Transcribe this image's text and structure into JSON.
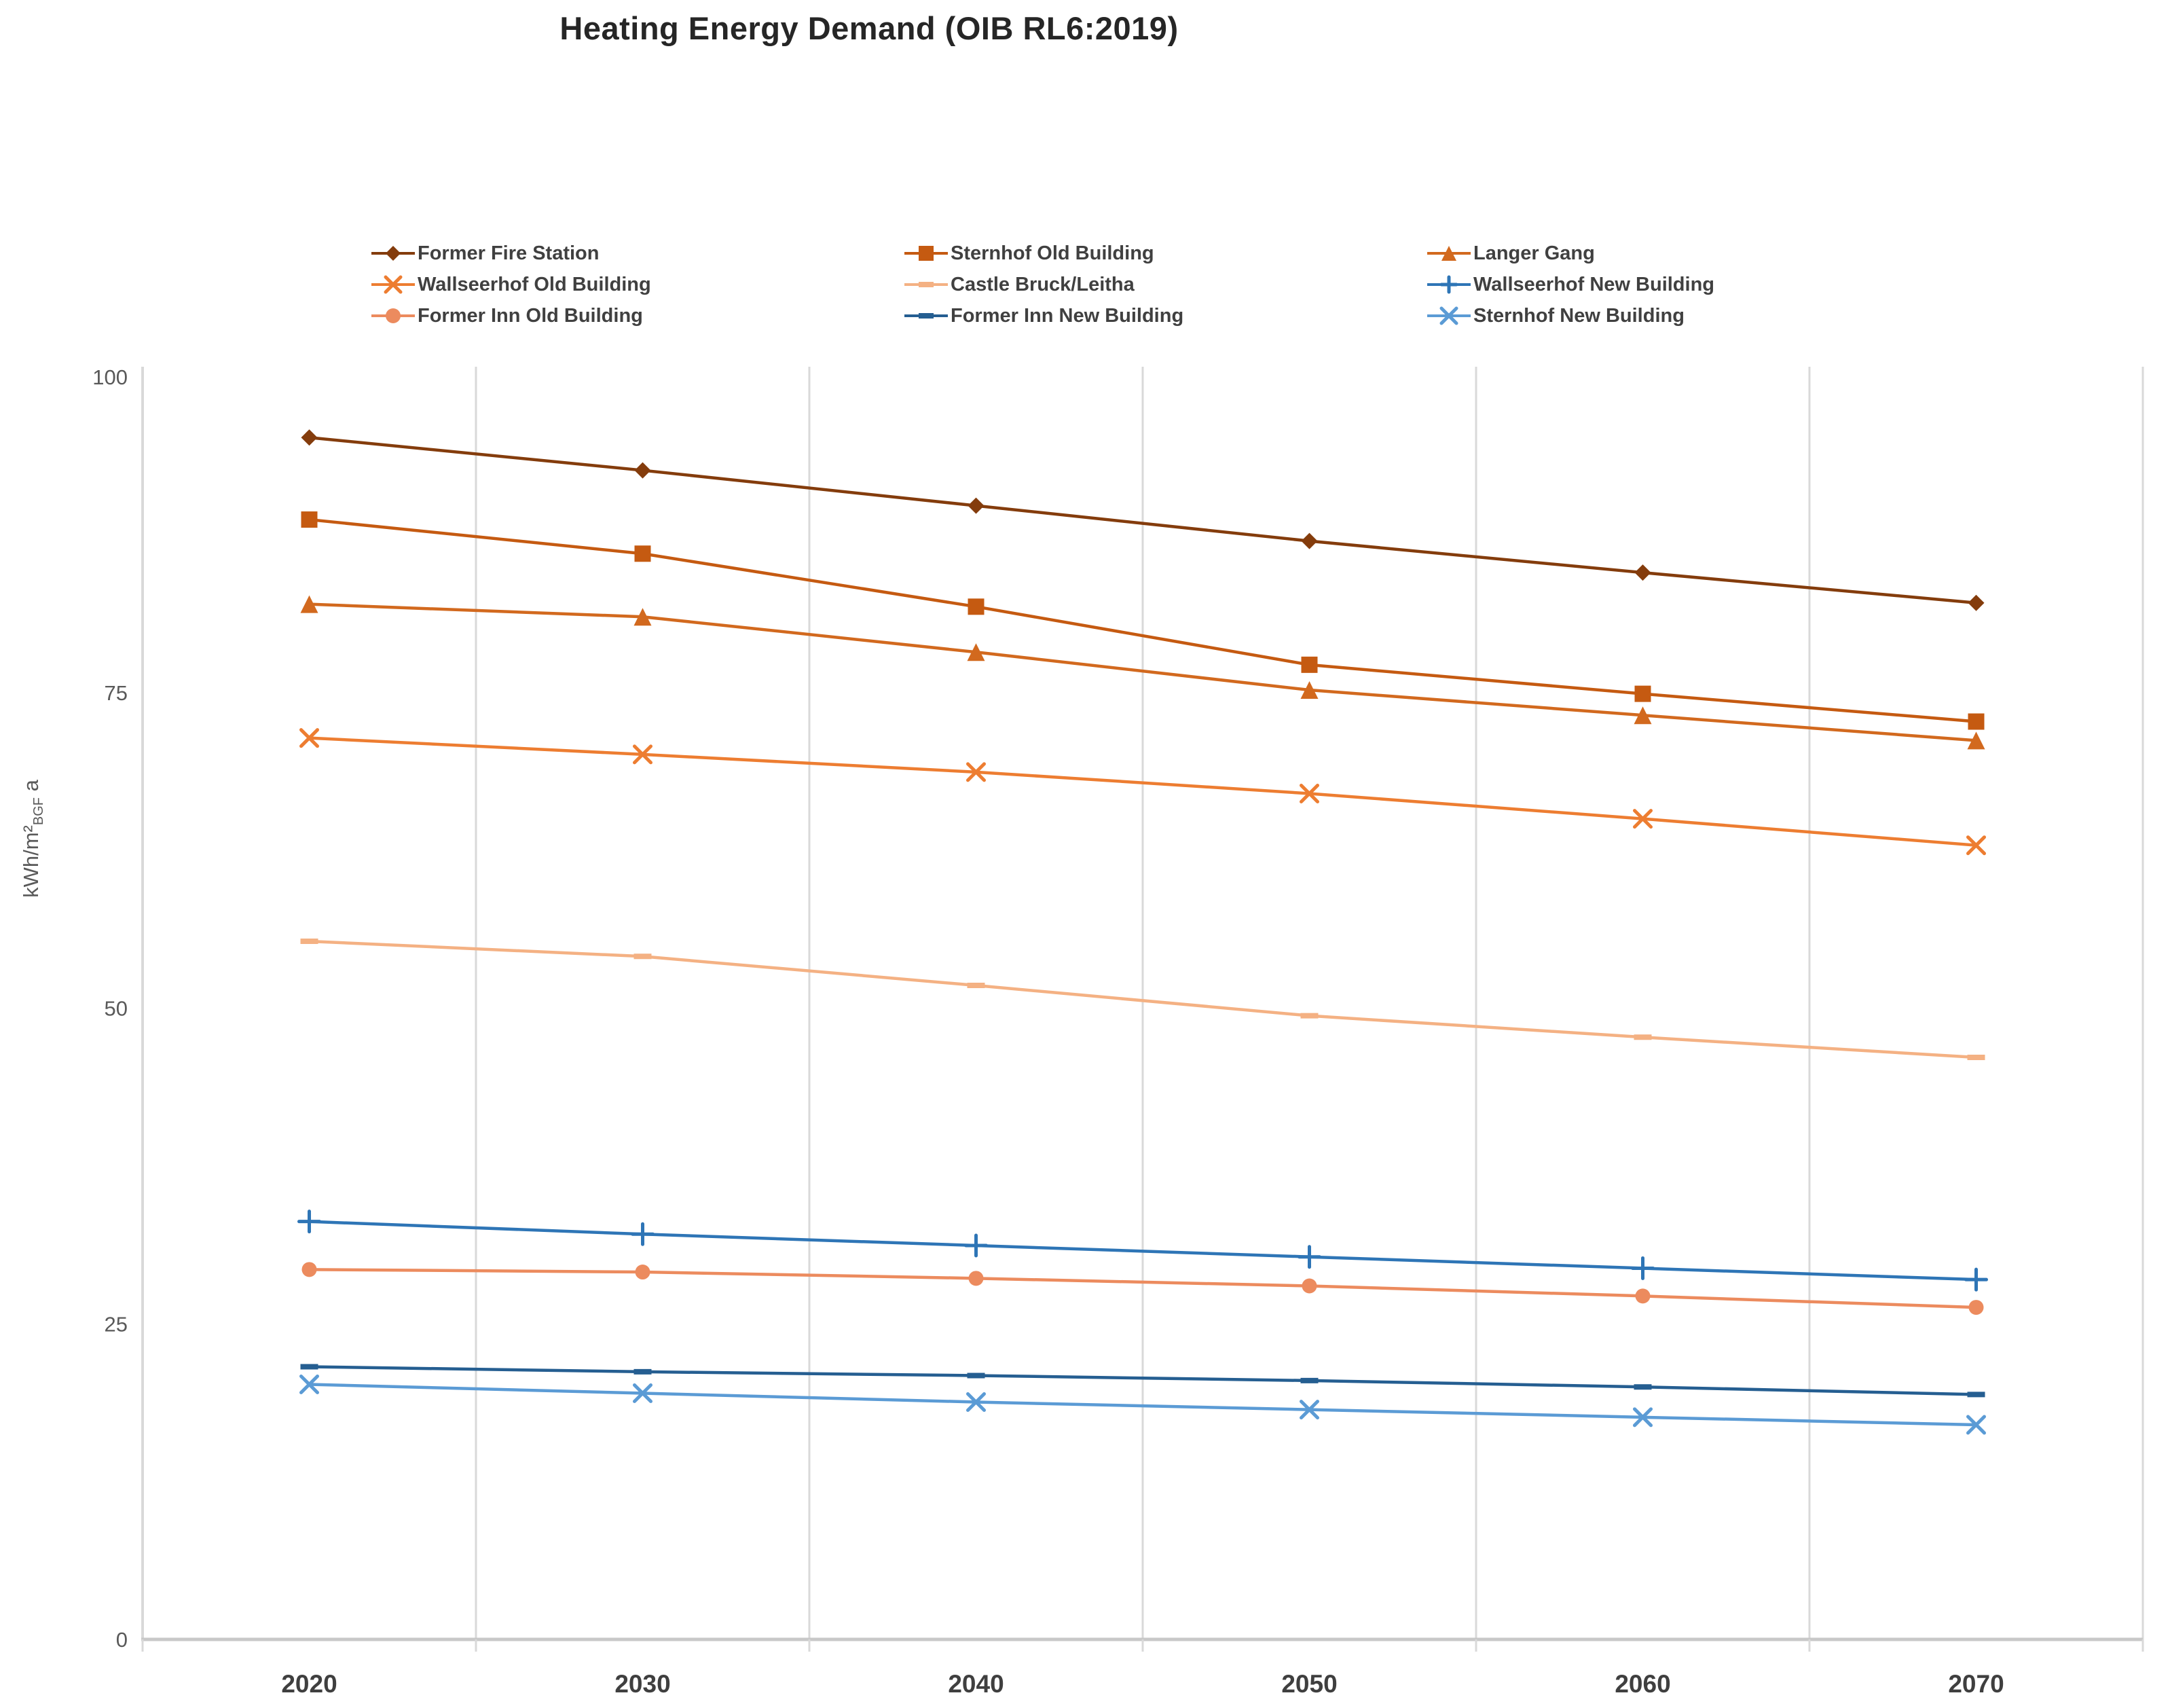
{
  "title": "Heating Energy Demand (OIB RL6:2019)",
  "y_axis": {
    "unit_main": "kWh/m²",
    "unit_sub": "BGF",
    "unit_tail": " a",
    "ticks": [
      0,
      25,
      50,
      75,
      100
    ]
  },
  "colors": {
    "grid": "#d9d9d9",
    "axis_line": "#c8c8c8",
    "tick_text": "#595959",
    "x_tick_text": "#3f3f3f",
    "title_text": "#262626",
    "legend_text": "#404040",
    "background": "#ffffff"
  },
  "chart_data": {
    "type": "line",
    "title": "Heating Energy Demand (OIB RL6:2019)",
    "xlabel": "",
    "ylabel": "kWh/m²BGF a",
    "ylim": [
      0,
      100
    ],
    "grid": "vertical",
    "legend_position": "top",
    "categories": [
      "2020",
      "2030",
      "2040",
      "2050",
      "2060",
      "2070"
    ],
    "series": [
      {
        "name": "Former Fire Station",
        "color": "#843C0C",
        "marker": "diamond",
        "values": [
          95.2,
          92.6,
          89.8,
          87.0,
          84.5,
          82.1
        ]
      },
      {
        "name": "Sternhof Old Building",
        "color": "#C55A11",
        "marker": "square",
        "values": [
          88.7,
          86.0,
          81.8,
          77.2,
          74.9,
          72.7
        ]
      },
      {
        "name": "Langer Gang",
        "color": "#D2691E",
        "marker": "triangle",
        "values": [
          82.0,
          81.0,
          78.2,
          75.2,
          73.2,
          71.2
        ]
      },
      {
        "name": "Wallseerhof Old Building",
        "color": "#ED7D31",
        "marker": "x",
        "values": [
          71.4,
          70.1,
          68.7,
          67.0,
          65.0,
          62.9
        ]
      },
      {
        "name": "Castle Bruck/Leitha",
        "color": "#F4B183",
        "marker": "dash",
        "values": [
          55.3,
          54.1,
          51.8,
          49.4,
          47.7,
          46.1
        ]
      },
      {
        "name": "Wallseerhof New Building",
        "color": "#2E75B6",
        "marker": "plus",
        "values": [
          33.1,
          32.1,
          31.2,
          30.3,
          29.4,
          28.5
        ]
      },
      {
        "name": "Former Inn Old Building",
        "color": "#EC8B5E",
        "marker": "circle",
        "values": [
          29.3,
          29.1,
          28.6,
          28.0,
          27.2,
          26.3
        ]
      },
      {
        "name": "Former Inn New Building",
        "color": "#255E91",
        "marker": "dash",
        "values": [
          21.6,
          21.2,
          20.9,
          20.5,
          20.0,
          19.4
        ]
      },
      {
        "name": "Sternhof New Building",
        "color": "#5B9BD5",
        "marker": "x",
        "values": [
          20.2,
          19.5,
          18.8,
          18.2,
          17.6,
          17.0
        ]
      }
    ]
  }
}
